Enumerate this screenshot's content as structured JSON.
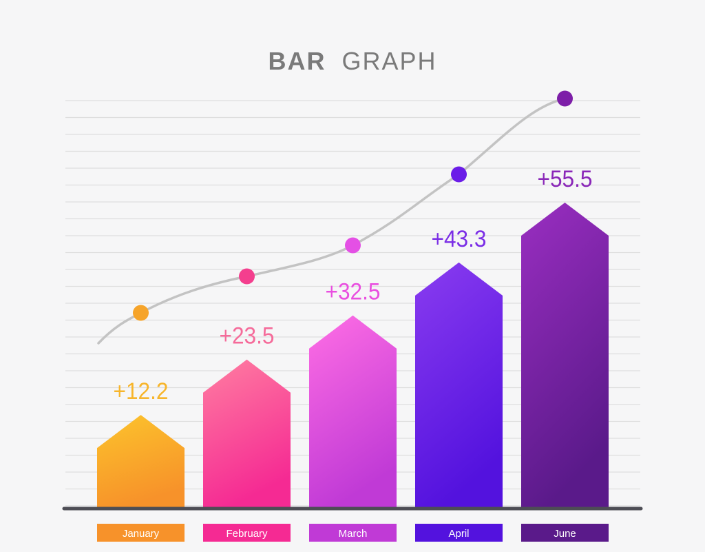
{
  "chart_data": {
    "type": "bar",
    "title": {
      "bold": "BAR",
      "light": "GRAPH"
    },
    "categories": [
      "January",
      "February",
      "March",
      "April",
      "June"
    ],
    "values": [
      12.2,
      23.5,
      32.5,
      43.3,
      55.5
    ],
    "value_labels": [
      "+12.2",
      "+23.5",
      "+32.5",
      "+43.3",
      "+55.5"
    ],
    "ylim": [
      0,
      60
    ],
    "grid": true,
    "trend_line": true,
    "colors": {
      "January": {
        "top": "#fcc42c",
        "bottom": "#f7922a",
        "label": "#f7b52b",
        "marker": "#f6a42a"
      },
      "February": {
        "top": "#ff7ea1",
        "bottom": "#f52a93",
        "label": "#f56b9a",
        "marker": "#f43f8e"
      },
      "March": {
        "top": "#ff6ee4",
        "bottom": "#c03ad6",
        "label": "#e94fe0",
        "marker": "#e450e5"
      },
      "April": {
        "top": "#8a3cf0",
        "bottom": "#5312de",
        "label": "#7b2ee6",
        "marker": "#6b1de8"
      },
      "June": {
        "top": "#9a2ec1",
        "bottom": "#5a1a8a",
        "label": "#8a27b8",
        "marker": "#7d1ea8"
      }
    },
    "title_color": "#7a7a7a",
    "grid_color": "#dedede",
    "axis_color": "#4d4d55",
    "trend_color": "#c3c3c3"
  }
}
